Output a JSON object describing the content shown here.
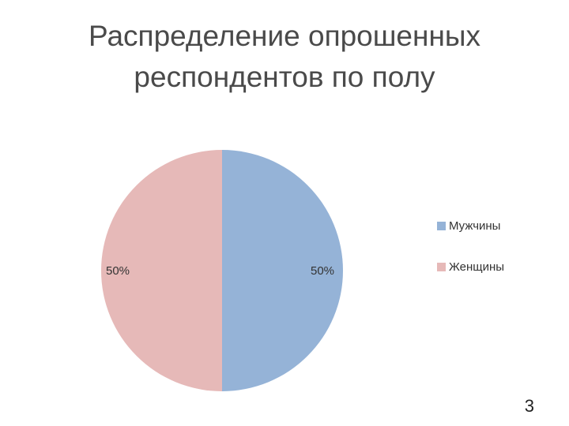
{
  "title_line1": "Распределение опрошенных",
  "title_line2": "респондентов по полу",
  "chart_data": {
    "type": "pie",
    "categories": [
      "Мужчины",
      "Женщины"
    ],
    "values": [
      50,
      50
    ],
    "labels": [
      "50%",
      "50%"
    ],
    "colors": [
      "#95b3d7",
      "#e6b9b8"
    ],
    "legend": "right"
  },
  "legend": [
    {
      "label": "Мужчины",
      "color": "#95b3d7"
    },
    {
      "label": "Женщины",
      "color": "#e6b9b8"
    }
  ],
  "page_number": "3"
}
